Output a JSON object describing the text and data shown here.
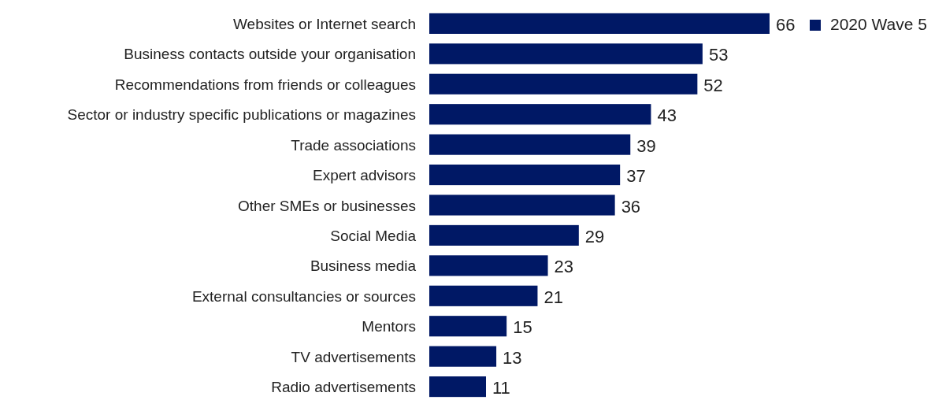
{
  "chart_data": {
    "type": "bar",
    "orientation": "horizontal",
    "categories": [
      "Websites or Internet search",
      "Business contacts outside your organisation",
      "Recommendations from friends or colleagues",
      "Sector or industry specific publications or magazines",
      "Trade associations",
      "Expert advisors",
      "Other SMEs or businesses",
      "Social Media",
      "Business media",
      "External consultancies or sources",
      "Mentors",
      "TV advertisements",
      "Radio advertisements"
    ],
    "series": [
      {
        "name": "2020 Wave 5",
        "color": "#001865",
        "values": [
          66,
          53,
          52,
          43,
          39,
          37,
          36,
          29,
          23,
          21,
          15,
          13,
          11
        ]
      }
    ],
    "data_labels": true,
    "legend": "top right",
    "grid": false
  }
}
